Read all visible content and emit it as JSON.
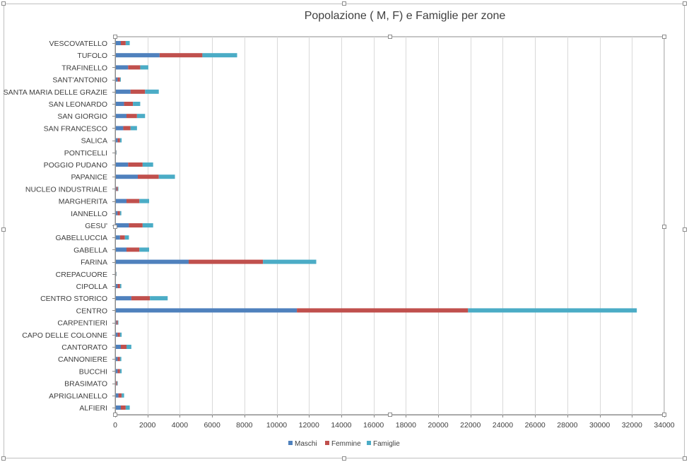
{
  "chart_data": {
    "type": "bar",
    "orientation": "horizontal",
    "stacked": true,
    "title": "Popolazione ( M, F) e Famiglie per zone",
    "categories": [
      "VESCOVATELLO",
      "TUFOLO",
      "TRAFINELLO",
      "SANT'ANTONIO",
      "SANTA MARIA DELLE GRAZIE",
      "SAN LEONARDO",
      "SAN GIORGIO",
      "SAN FRANCESCO",
      "SALICA",
      "PONTICELLI",
      "POGGIO PUDANO",
      "PAPANICE",
      "NUCLEO INDUSTRIALE",
      "MARGHERITA",
      "IANNELLO",
      "GESU'",
      "GABELLUCCIA",
      "GABELLA",
      "FARINA",
      "CREPACUORE",
      "CIPOLLA",
      "CENTRO STORICO",
      "CENTRO",
      "CARPENTIERI",
      "CAPO DELLE COLONNE",
      "CANTORATO",
      "CANNONIERE",
      "BUCCHI",
      "BRASIMATO",
      "APRIGLIANELLO",
      "ALFIERI"
    ],
    "series": [
      {
        "name": "Maschi",
        "color": "#4f81bd",
        "values": [
          350,
          2750,
          800,
          150,
          950,
          550,
          700,
          500,
          150,
          30,
          800,
          1400,
          80,
          700,
          150,
          850,
          300,
          700,
          4550,
          30,
          150,
          1000,
          11250,
          80,
          150,
          350,
          150,
          150,
          60,
          200,
          350
        ]
      },
      {
        "name": "Femmine",
        "color": "#c0504d",
        "values": [
          300,
          2650,
          750,
          150,
          900,
          550,
          650,
          450,
          150,
          30,
          900,
          1300,
          80,
          800,
          150,
          850,
          300,
          800,
          4600,
          30,
          150,
          1150,
          10600,
          80,
          150,
          350,
          150,
          150,
          60,
          200,
          300
        ]
      },
      {
        "name": "Famiglie",
        "color": "#4bacc6",
        "values": [
          250,
          2150,
          500,
          50,
          850,
          450,
          500,
          400,
          100,
          20,
          650,
          1000,
          40,
          600,
          80,
          650,
          250,
          600,
          3300,
          20,
          80,
          1100,
          10450,
          40,
          100,
          300,
          80,
          100,
          40,
          150,
          250
        ]
      }
    ],
    "xlim": [
      0,
      34000
    ],
    "xticks": [
      0,
      2000,
      4000,
      6000,
      8000,
      10000,
      12000,
      14000,
      16000,
      18000,
      20000,
      22000,
      24000,
      26000,
      28000,
      30000,
      32000,
      34000
    ],
    "grid": true,
    "legend_position": "bottom"
  }
}
